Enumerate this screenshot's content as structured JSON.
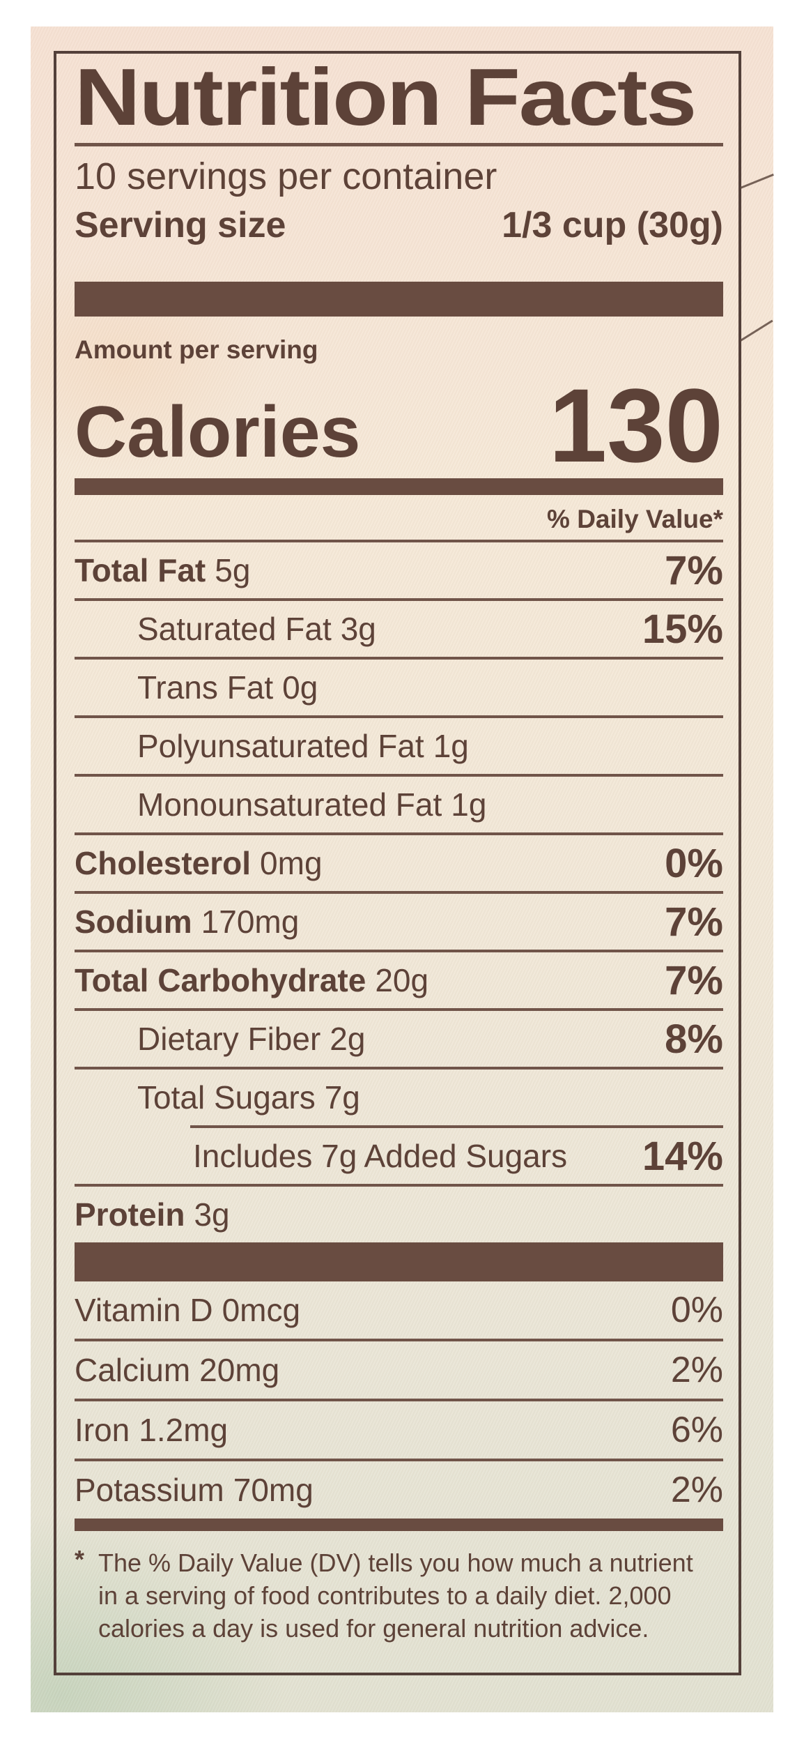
{
  "label": {
    "title": "Nutrition Facts",
    "servings_per_container": "10 servings per container",
    "serving_size": {
      "label": "Serving size",
      "value": "1/3 cup (30g)"
    },
    "amount_per_serving": "Amount per serving",
    "calories": {
      "label": "Calories",
      "value": "130"
    },
    "daily_value_header": "% Daily Value*",
    "nutrients": [
      {
        "name": "Total Fat",
        "amount": "5g",
        "dv": "7%",
        "bold": true,
        "indent": 0
      },
      {
        "name": "Saturated Fat",
        "amount": "3g",
        "dv": "15%",
        "bold": false,
        "indent": 1
      },
      {
        "name": "Trans Fat",
        "amount": "0g",
        "dv": "",
        "bold": false,
        "indent": 1
      },
      {
        "name": "Polyunsaturated Fat",
        "amount": "1g",
        "dv": "",
        "bold": false,
        "indent": 1
      },
      {
        "name": "Monounsaturated Fat",
        "amount": "1g",
        "dv": "",
        "bold": false,
        "indent": 1
      },
      {
        "name": "Cholesterol",
        "amount": "0mg",
        "dv": "0%",
        "bold": true,
        "indent": 0
      },
      {
        "name": "Sodium",
        "amount": "170mg",
        "dv": "7%",
        "bold": true,
        "indent": 0
      },
      {
        "name": "Total Carbohydrate",
        "amount": "20g",
        "dv": "7%",
        "bold": true,
        "indent": 0
      },
      {
        "name": "Dietary Fiber",
        "amount": "2g",
        "dv": "8%",
        "bold": false,
        "indent": 1
      },
      {
        "name": "Total Sugars",
        "amount": "7g",
        "dv": "",
        "bold": false,
        "indent": 1,
        "rule_below_indented": true
      },
      {
        "name": "Includes 7g Added Sugars",
        "amount": "",
        "dv": "14%",
        "bold": false,
        "indent": 2
      },
      {
        "name": "Protein",
        "amount": "3g",
        "dv": "",
        "bold": true,
        "indent": 0
      }
    ],
    "vitamins": [
      {
        "name": "Vitamin D",
        "amount": "0mcg",
        "dv": "0%"
      },
      {
        "name": "Calcium",
        "amount": "20mg",
        "dv": "2%"
      },
      {
        "name": "Iron",
        "amount": "1.2mg",
        "dv": "6%"
      },
      {
        "name": "Potassium",
        "amount": "70mg",
        "dv": "2%"
      }
    ],
    "footnote_marker": "*",
    "footnote_lines": [
      "The % Daily Value (DV) tells you how much a nutrient",
      "in a serving of food contributes to a daily diet. 2,000",
      "calories a day is used for general nutrition advice."
    ]
  },
  "colors": {
    "ink": "#5d4238",
    "bar": "#694c41",
    "rule": "#705449",
    "border": "#53403a",
    "photo_bg_top": "#f6e2d4",
    "photo_bg_bottom": "#e2e2d2",
    "frame": "#ffffff"
  }
}
